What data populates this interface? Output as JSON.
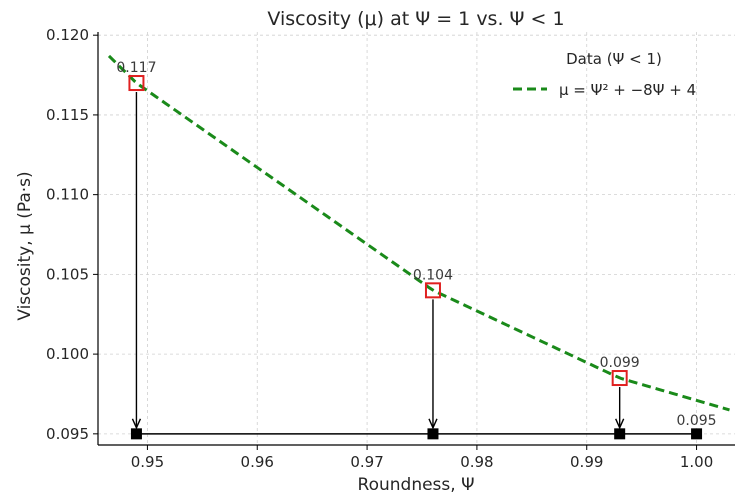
{
  "chart_data": {
    "type": "line",
    "title": "Viscosity (μ) at Ψ = 1 vs. Ψ < 1",
    "xlabel": "Roundness, Ψ",
    "ylabel": "Viscosity, μ (Pa·s)",
    "xlim": [
      0.9455,
      1.0035
    ],
    "ylim": [
      0.0943,
      0.1202
    ],
    "x_ticks": [
      0.95,
      0.96,
      0.97,
      0.98,
      0.99,
      1.0
    ],
    "x_tick_labels": [
      "0.95",
      "0.96",
      "0.97",
      "0.98",
      "0.99",
      "1.00"
    ],
    "y_ticks": [
      0.095,
      0.1,
      0.105,
      0.11,
      0.115,
      0.12
    ],
    "y_tick_labels": [
      "0.095",
      "0.100",
      "0.105",
      "0.110",
      "0.115",
      "0.120"
    ],
    "grid": true,
    "legend_placement": "top-right",
    "legend": {
      "title": "Data (Ψ < 1)",
      "entries": [
        "μ = Ψ² + −8Ψ + 4"
      ]
    },
    "series": [
      {
        "name": "μ = Ψ² + −8Ψ + 4",
        "style": "dashed",
        "color": "#1a8a1a",
        "x_start": 0.9465,
        "x_end": 1.003,
        "y_at_x_start": 0.1187,
        "y_at_x_end": 0.0965
      }
    ],
    "highlighted_points": [
      {
        "x": 0.949,
        "y": 0.117,
        "label": "0.117"
      },
      {
        "x": 0.976,
        "y": 0.104,
        "label": "0.104"
      },
      {
        "x": 0.993,
        "y": 0.0985,
        "label": "0.099"
      }
    ],
    "baseline_points": [
      {
        "x": 0.949,
        "y": 0.095
      },
      {
        "x": 0.976,
        "y": 0.095
      },
      {
        "x": 0.993,
        "y": 0.095
      },
      {
        "x": 1.0,
        "y": 0.095,
        "label": "0.095"
      }
    ],
    "colors": {
      "curve": "#1a8a1a",
      "highlight_marker": "#e02020",
      "baseline_marker": "#000000",
      "grid": "#d0d0d0"
    }
  }
}
